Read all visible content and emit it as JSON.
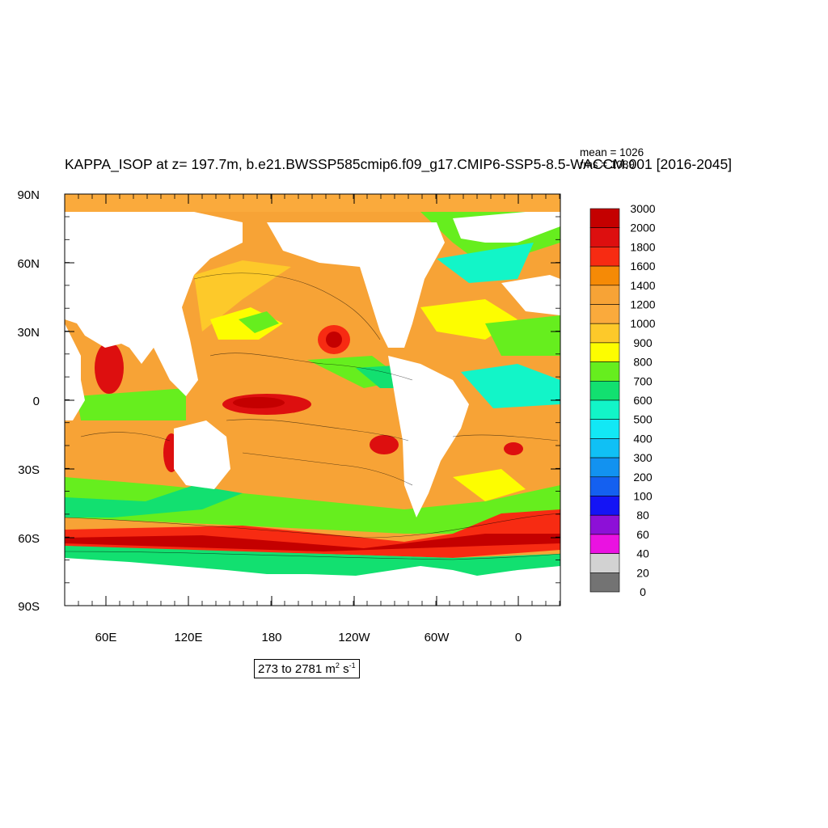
{
  "title": "KAPPA_ISOP at z= 197.7m, b.e21.BWSSP585cmip6.f09_g17.CMIP6-SSP5-8.5-WACCM.001 [2016-2045]",
  "stats": {
    "mean": "mean = 1026",
    "rms": "rms = 1089"
  },
  "range_note": {
    "prefix": "273 to 2781 m",
    "exp1": "2",
    "mid": " s",
    "exp2": "-1"
  },
  "map_axes": {
    "lat_labels": [
      "90N",
      "60N",
      "30N",
      "0",
      "30S",
      "60S",
      "90S"
    ],
    "lon_labels": [
      "60E",
      "120E",
      "180",
      "120W",
      "60W",
      "0"
    ]
  },
  "colorbar": {
    "labels": [
      "3000",
      "2000",
      "1800",
      "1600",
      "1400",
      "1200",
      "1000",
      "900",
      "800",
      "700",
      "600",
      "500",
      "400",
      "300",
      "200",
      "100",
      "80",
      "60",
      "40",
      "20",
      "0"
    ],
    "colors": [
      "#c40000",
      "#dd0f0f",
      "#f72b12",
      "#f58a06",
      "#f7a336",
      "#faaa3c",
      "#fdc92a",
      "#fdfd00",
      "#66ee1e",
      "#12e070",
      "#12f5c8",
      "#12e8f5",
      "#10c0f5",
      "#1292f0",
      "#1460f0",
      "#1414f5",
      "#8d10d7",
      "#ea12e1",
      "#d2d2d2",
      "#737373"
    ]
  }
}
